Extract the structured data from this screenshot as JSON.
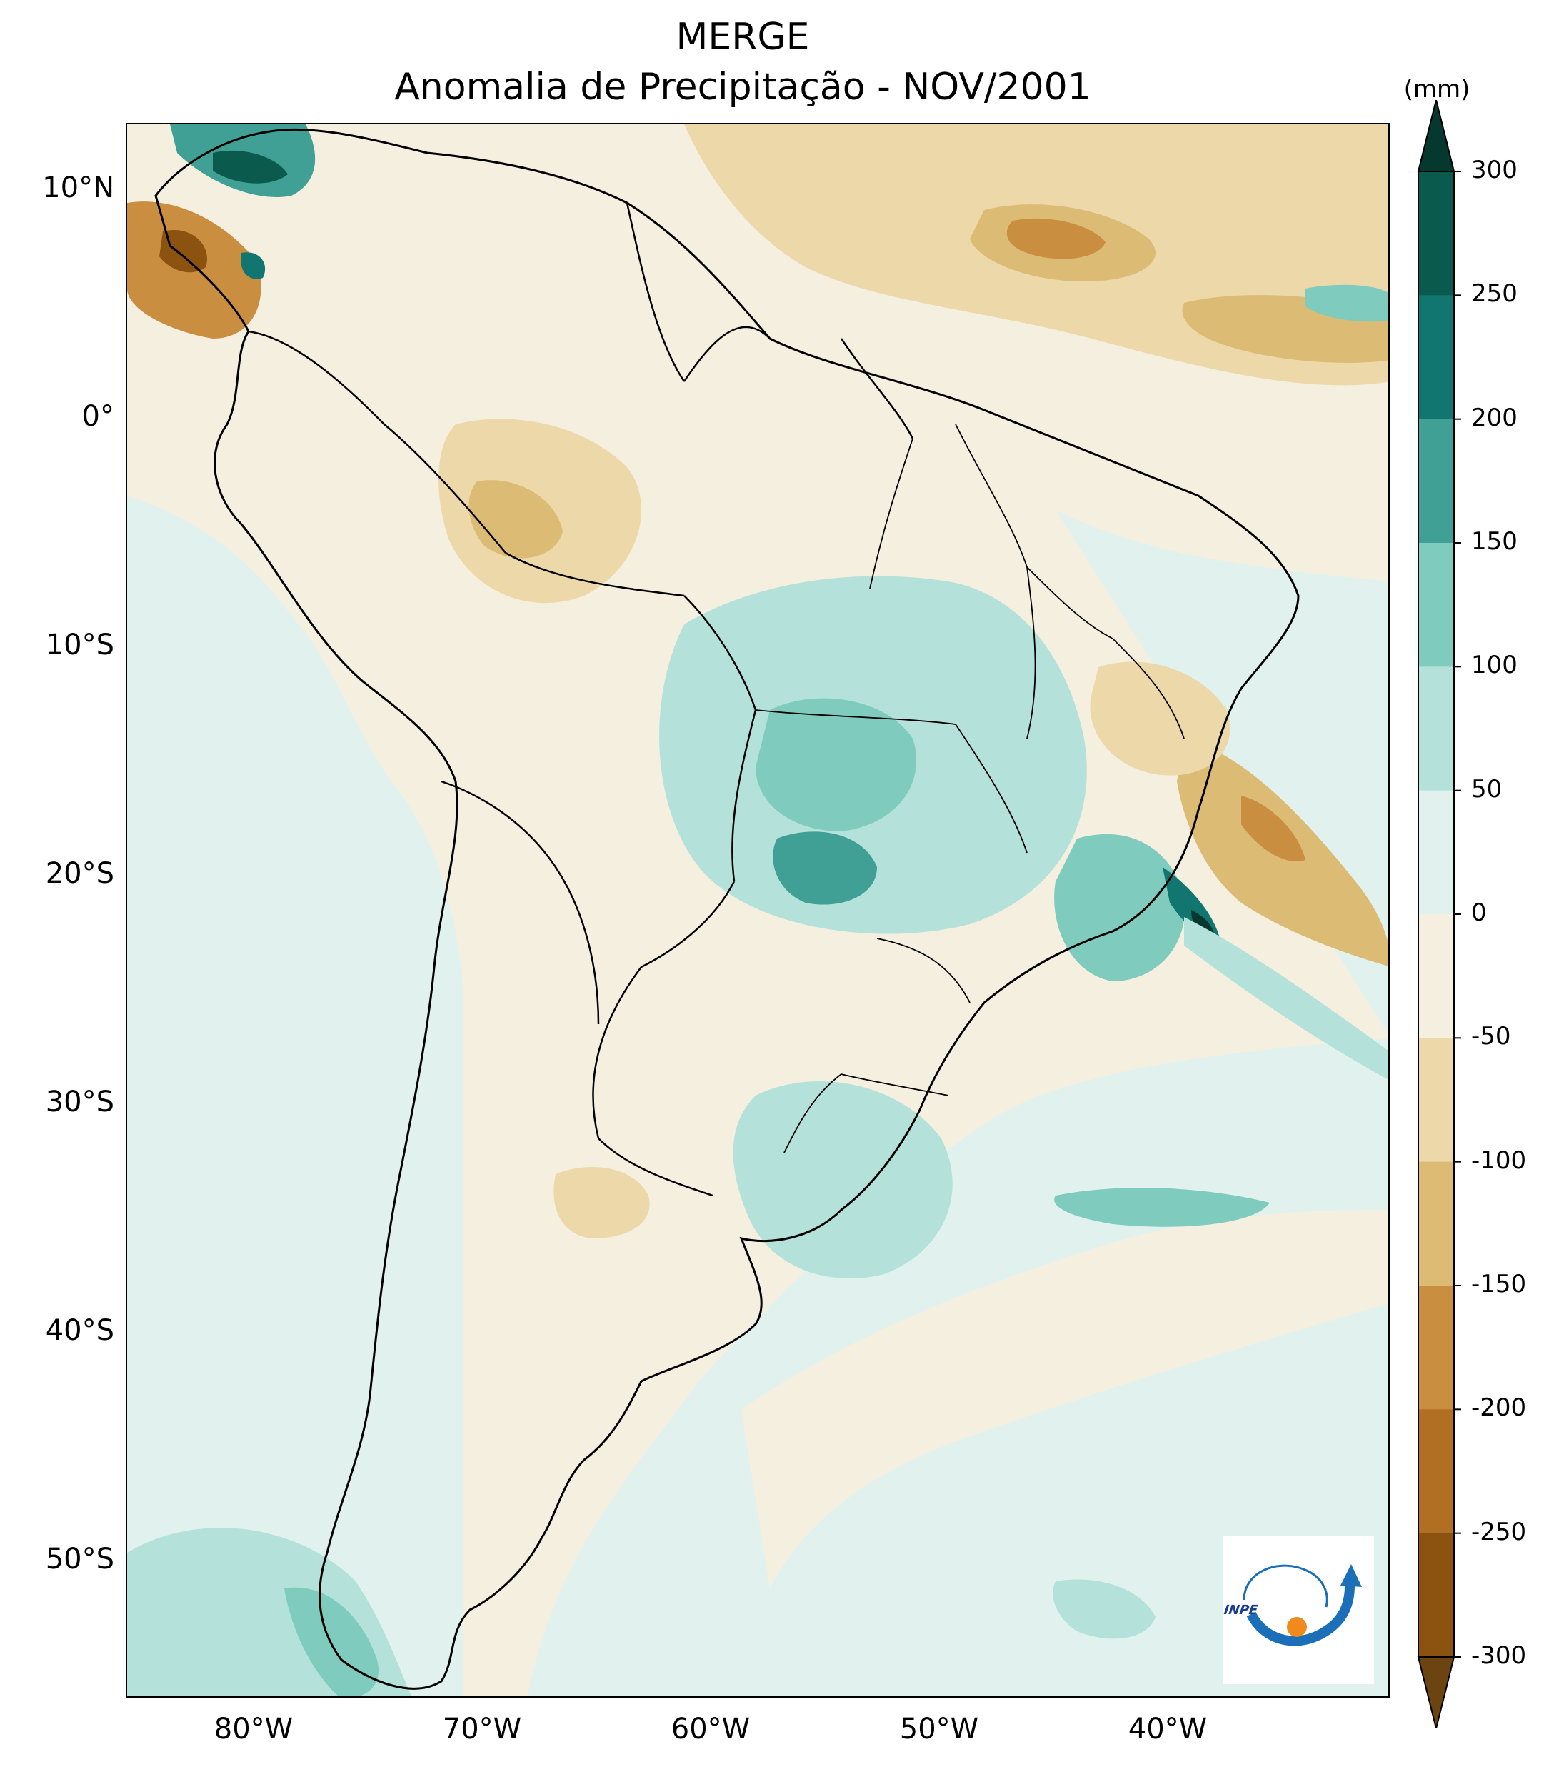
{
  "title": {
    "line1": "MERGE",
    "line2": "Anomalia de Precipitação - NOV/2001"
  },
  "map": {
    "type": "filled-contour-map",
    "region": "South America",
    "variable": "Precipitation anomaly",
    "lat_range": [
      -56,
      12.5
    ],
    "lon_range": [
      -85,
      -30
    ],
    "lat_ticks": [
      "10°N",
      "0°",
      "10°S",
      "20°S",
      "30°S",
      "40°S",
      "50°S"
    ],
    "lat_tick_values": [
      10,
      0,
      -10,
      -20,
      -30,
      -40,
      -50
    ],
    "lon_ticks": [
      "80°W",
      "70°W",
      "60°W",
      "50°W",
      "40°W"
    ],
    "lon_tick_values": [
      -80,
      -70,
      -60,
      -50,
      -40
    ]
  },
  "colorbar": {
    "unit": "(mm)",
    "levels": [
      "300",
      "250",
      "200",
      "150",
      "100",
      "50",
      "0",
      "-50",
      "-100",
      "-150",
      "-200",
      "-250",
      "-300"
    ],
    "level_values": [
      300,
      250,
      200,
      150,
      100,
      50,
      0,
      -50,
      -100,
      -150,
      -200,
      -250,
      -300
    ],
    "extend": "both",
    "colors": [
      "#6b4411",
      "#8c520f",
      "#b06f22",
      "#c98e3f",
      "#dcbb74",
      "#ecd8a9",
      "#f5efe0",
      "#e1f2ee",
      "#b4e1d9",
      "#7fcbbd",
      "#40a096",
      "#127670",
      "#0a5a4e",
      "#05382e"
    ]
  },
  "logo": {
    "text": "INPE"
  }
}
